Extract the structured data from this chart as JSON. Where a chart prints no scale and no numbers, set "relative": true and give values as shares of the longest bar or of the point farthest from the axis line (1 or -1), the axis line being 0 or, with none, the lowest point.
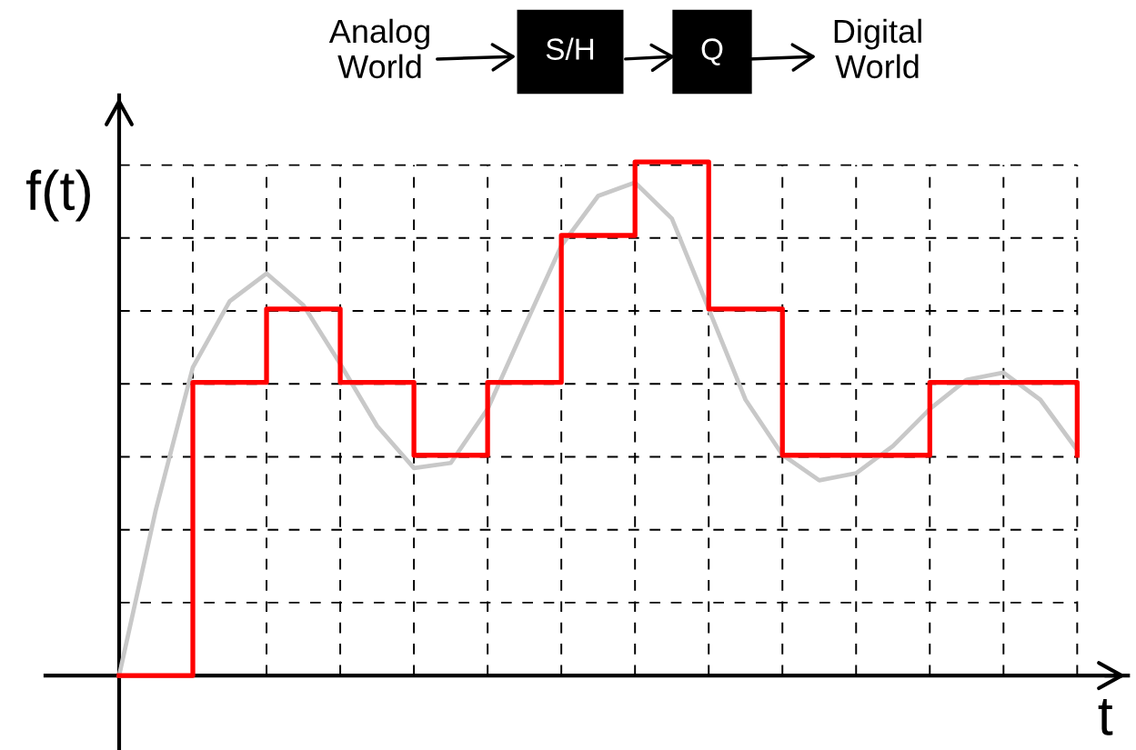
{
  "chart_data": {
    "type": "line",
    "relative": true,
    "xlabel": "t",
    "ylabel": "f(t)",
    "grid": true,
    "tick_labels": false,
    "categories": [
      null,
      null,
      null,
      null,
      null,
      null,
      null,
      null,
      null,
      null,
      null,
      null,
      null,
      null,
      null,
      null,
      null,
      null,
      null,
      null,
      null,
      null,
      null,
      null,
      null,
      null,
      null
    ],
    "annotations": [
      "Analog\nWorld",
      "S/H",
      "Q",
      "Digital\nWorld"
    ],
    "series": [
      {
        "color": "#c8c8c8",
        "values": [
          0,
          0.324,
          0.6,
          0.729,
          0.783,
          0.721,
          0.607,
          0.486,
          0.404,
          0.414,
          0.519,
          0.679,
          0.837,
          0.934,
          0.96,
          0.89,
          0.714,
          0.537,
          0.43,
          0.38,
          0.394,
          0.447,
          0.519,
          0.576,
          0.59,
          0.537,
          0.439
        ]
      },
      {
        "type": "step",
        "color": "#ff0000",
        "values": [
          0,
          0,
          0.571,
          0.571,
          0.714,
          0.714,
          0.571,
          0.571,
          0.429,
          0.429,
          0.571,
          0.571,
          0.857,
          0.857,
          1,
          1,
          0.714,
          0.714,
          0.429,
          0.429,
          0.429,
          0.429,
          0.571,
          0.571,
          0.571,
          0.571,
          0.429
        ]
      }
    ]
  }
}
